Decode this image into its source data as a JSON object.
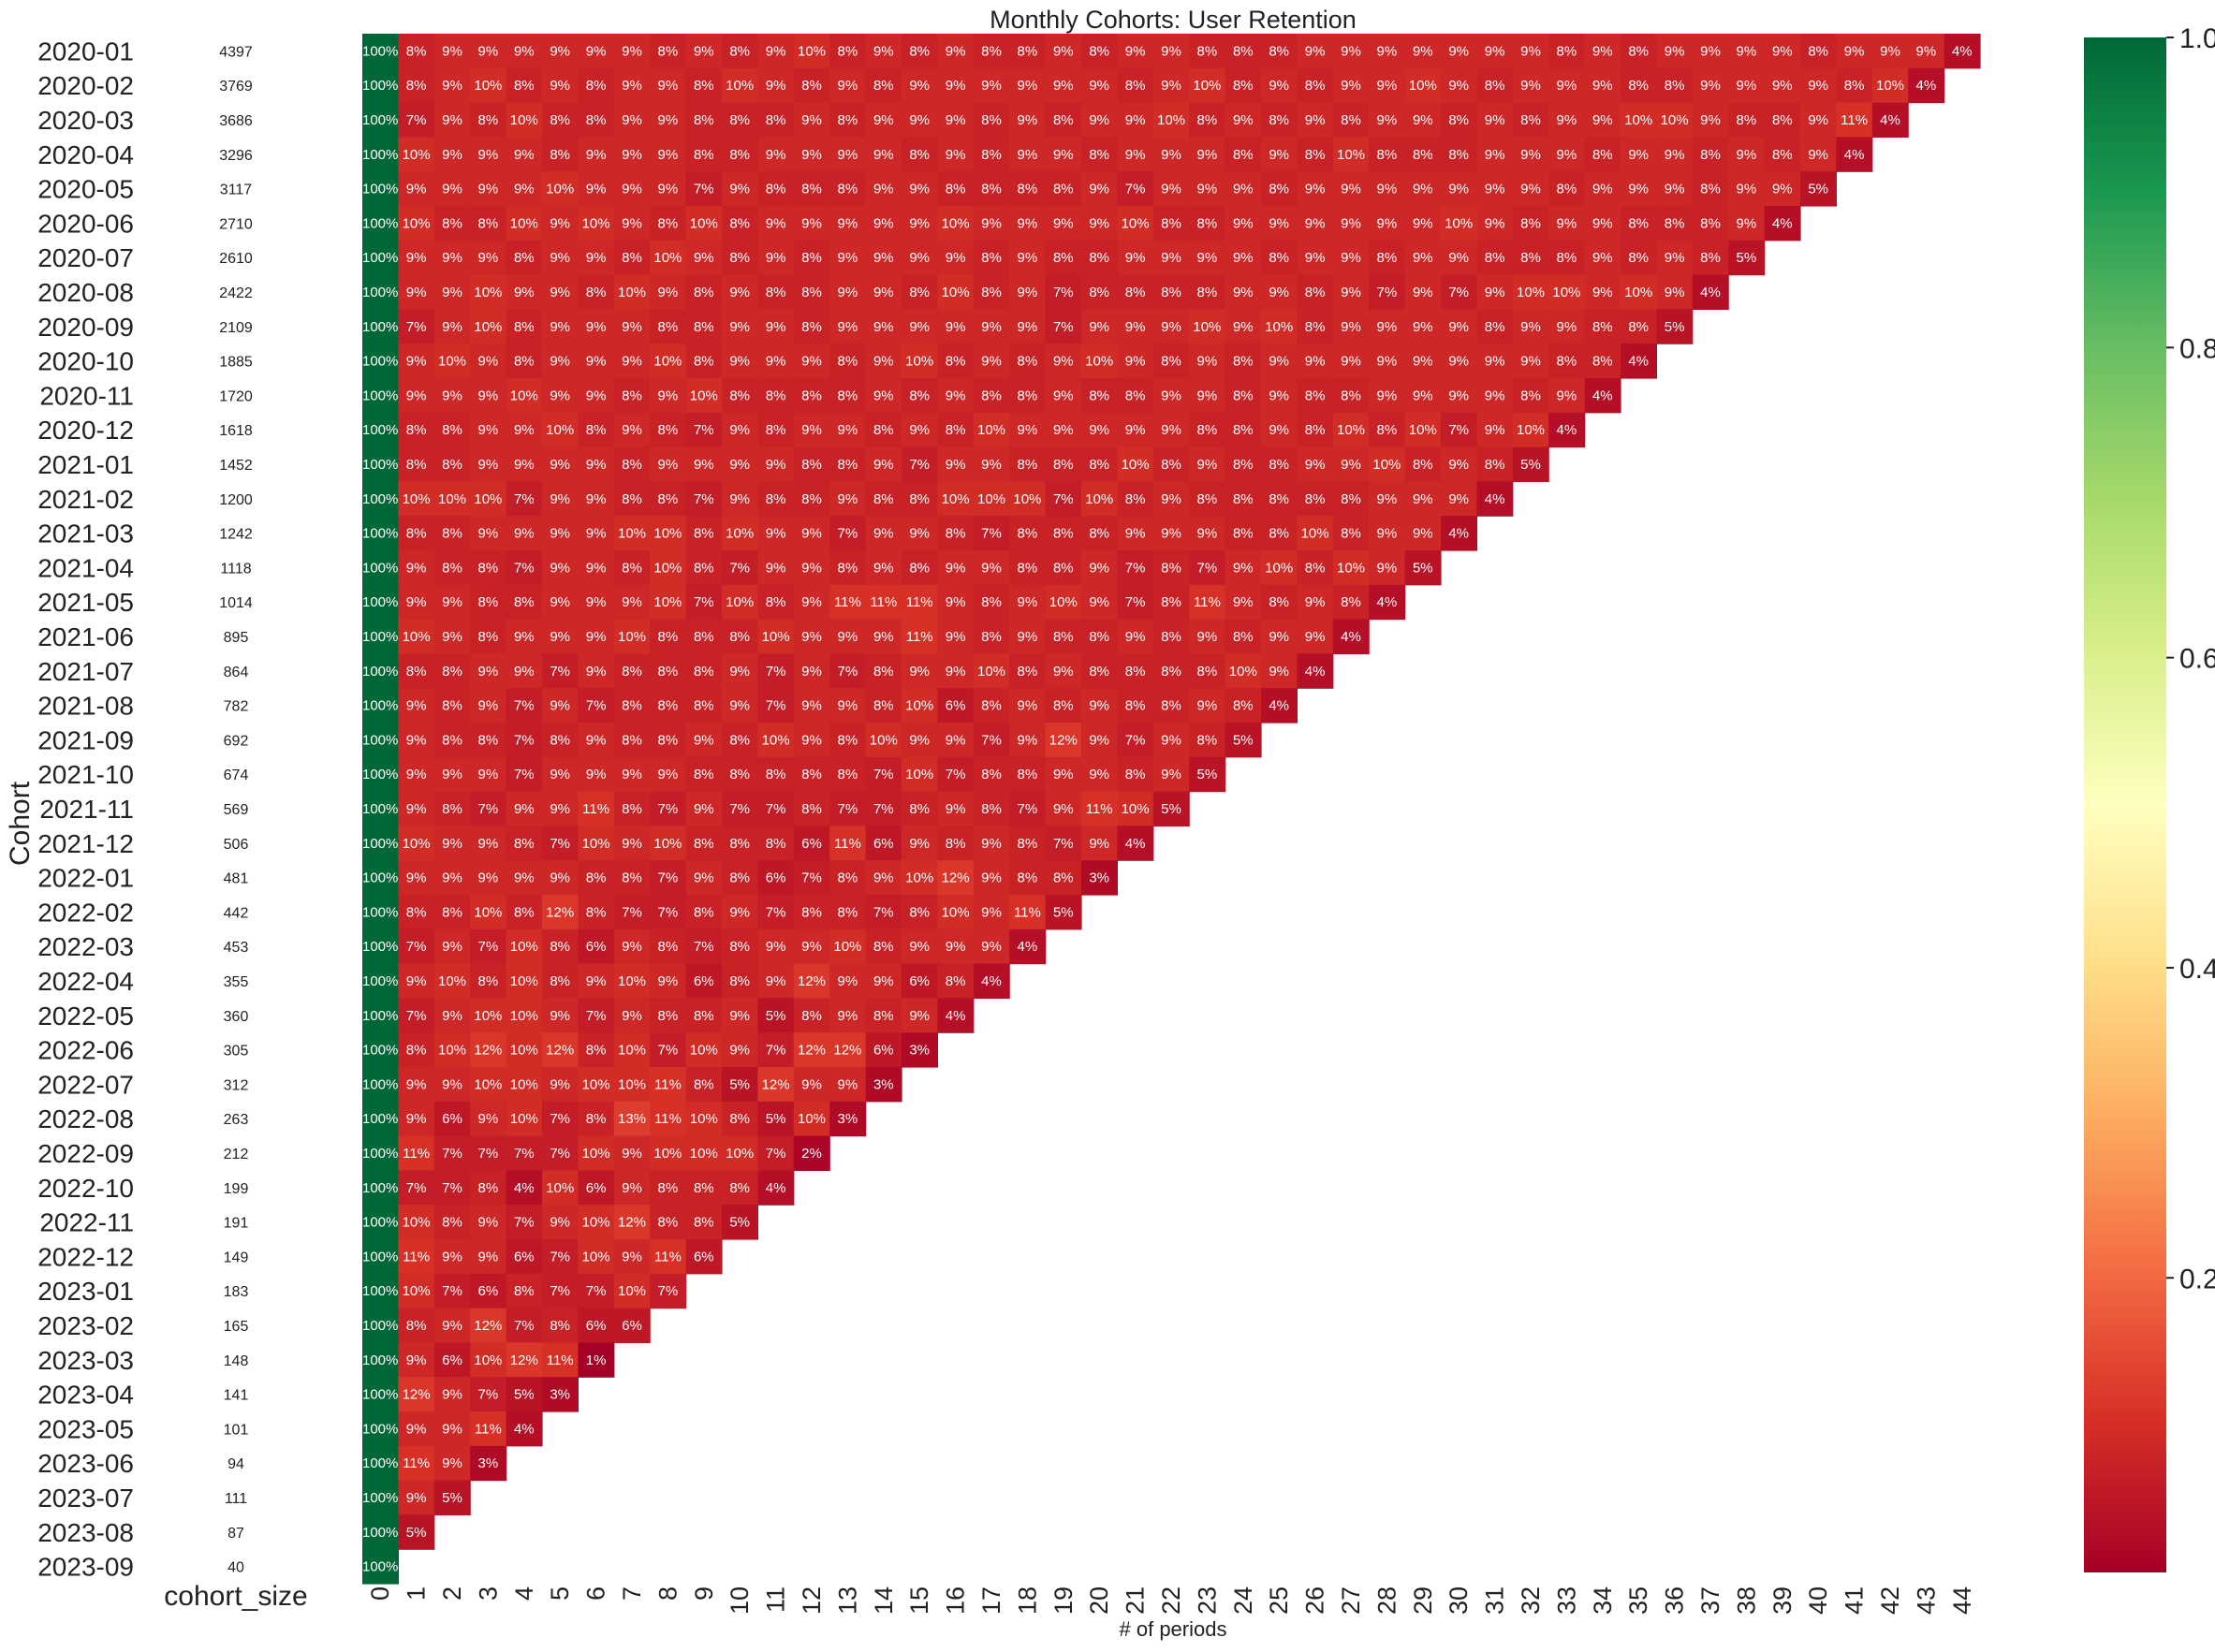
{
  "chart_data": [
    {
      "type": "heatmap",
      "title": "Monthly Cohorts: User Retention",
      "xlabel": "# of periods",
      "ylabel": "Cohort",
      "colormap": "RdYlGn",
      "colorbar": {
        "ticks": [
          "0.2",
          "0.4",
          "0.6",
          "0.8",
          "1.0"
        ],
        "min": 0.01,
        "max": 1.0
      },
      "x_ticks": [
        "0",
        "1",
        "2",
        "3",
        "4",
        "5",
        "6",
        "7",
        "8",
        "9",
        "10",
        "11",
        "12",
        "13",
        "14",
        "15",
        "16",
        "17",
        "18",
        "19",
        "20",
        "21",
        "22",
        "23",
        "24",
        "25",
        "26",
        "27",
        "28",
        "29",
        "30",
        "31",
        "32",
        "33",
        "34",
        "35",
        "36",
        "37",
        "38",
        "39",
        "40",
        "41",
        "42",
        "43",
        "44"
      ],
      "cohorts": [
        "2020-01",
        "2020-02",
        "2020-03",
        "2020-04",
        "2020-05",
        "2020-06",
        "2020-07",
        "2020-08",
        "2020-09",
        "2020-10",
        "2020-11",
        "2020-12",
        "2021-01",
        "2021-02",
        "2021-03",
        "2021-04",
        "2021-05",
        "2021-06",
        "2021-07",
        "2021-08",
        "2021-09",
        "2021-10",
        "2021-11",
        "2021-12",
        "2022-01",
        "2022-02",
        "2022-03",
        "2022-04",
        "2022-05",
        "2022-06",
        "2022-07",
        "2022-08",
        "2022-09",
        "2022-10",
        "2022-11",
        "2022-12",
        "2023-01",
        "2023-02",
        "2023-03",
        "2023-04",
        "2023-05",
        "2023-06",
        "2023-07",
        "2023-08",
        "2023-09"
      ],
      "values": [
        [
          100,
          8,
          9,
          9,
          9,
          9,
          9,
          9,
          8,
          9,
          8,
          9,
          10,
          8,
          9,
          8,
          9,
          8,
          8,
          9,
          8,
          9,
          9,
          8,
          8,
          8,
          9,
          9,
          9,
          9,
          9,
          9,
          9,
          8,
          9,
          8,
          9,
          9,
          9,
          9,
          8,
          9,
          9,
          9,
          4
        ],
        [
          100,
          8,
          9,
          10,
          8,
          9,
          8,
          9,
          9,
          8,
          10,
          9,
          8,
          9,
          8,
          9,
          9,
          9,
          9,
          9,
          9,
          8,
          9,
          10,
          8,
          9,
          8,
          9,
          9,
          10,
          9,
          8,
          9,
          9,
          9,
          8,
          8,
          9,
          9,
          9,
          9,
          8,
          10,
          4
        ],
        [
          100,
          7,
          9,
          8,
          10,
          8,
          8,
          9,
          9,
          8,
          8,
          8,
          9,
          8,
          9,
          9,
          9,
          8,
          9,
          8,
          9,
          9,
          10,
          8,
          9,
          8,
          9,
          8,
          9,
          9,
          8,
          9,
          8,
          9,
          9,
          10,
          10,
          9,
          8,
          8,
          9,
          11,
          4
        ],
        [
          100,
          10,
          9,
          9,
          9,
          8,
          9,
          9,
          9,
          8,
          8,
          9,
          9,
          9,
          9,
          8,
          9,
          8,
          9,
          9,
          8,
          9,
          9,
          9,
          8,
          9,
          8,
          10,
          8,
          8,
          8,
          9,
          9,
          9,
          8,
          9,
          9,
          8,
          9,
          8,
          9,
          4
        ],
        [
          100,
          9,
          9,
          9,
          9,
          10,
          9,
          9,
          9,
          7,
          9,
          8,
          8,
          8,
          9,
          9,
          8,
          8,
          8,
          8,
          9,
          7,
          9,
          9,
          9,
          8,
          9,
          9,
          9,
          9,
          9,
          9,
          9,
          8,
          9,
          9,
          9,
          8,
          9,
          9,
          5
        ],
        [
          100,
          10,
          8,
          8,
          10,
          9,
          10,
          9,
          8,
          10,
          8,
          9,
          9,
          9,
          9,
          9,
          10,
          9,
          9,
          9,
          9,
          10,
          8,
          8,
          9,
          9,
          9,
          9,
          9,
          9,
          10,
          9,
          8,
          9,
          9,
          8,
          8,
          8,
          9,
          4
        ],
        [
          100,
          9,
          9,
          9,
          8,
          9,
          9,
          8,
          10,
          9,
          8,
          9,
          8,
          9,
          9,
          9,
          9,
          8,
          9,
          8,
          8,
          9,
          9,
          9,
          9,
          8,
          9,
          9,
          8,
          9,
          9,
          8,
          8,
          8,
          9,
          8,
          9,
          8,
          5
        ],
        [
          100,
          9,
          9,
          10,
          9,
          9,
          8,
          10,
          9,
          8,
          9,
          8,
          8,
          9,
          9,
          8,
          10,
          8,
          9,
          7,
          8,
          8,
          8,
          8,
          9,
          9,
          8,
          9,
          7,
          9,
          7,
          9,
          10,
          10,
          9,
          10,
          9,
          4
        ],
        [
          100,
          7,
          9,
          10,
          8,
          9,
          9,
          9,
          8,
          8,
          9,
          9,
          8,
          9,
          9,
          9,
          9,
          9,
          9,
          7,
          9,
          9,
          9,
          10,
          9,
          10,
          8,
          9,
          9,
          9,
          9,
          8,
          9,
          9,
          8,
          8,
          5
        ],
        [
          100,
          9,
          10,
          9,
          8,
          9,
          9,
          9,
          10,
          8,
          9,
          9,
          9,
          8,
          9,
          10,
          8,
          9,
          8,
          9,
          10,
          9,
          8,
          9,
          8,
          9,
          9,
          9,
          9,
          9,
          9,
          9,
          9,
          8,
          8,
          4
        ],
        [
          100,
          9,
          9,
          9,
          10,
          9,
          9,
          8,
          9,
          10,
          8,
          8,
          8,
          8,
          9,
          8,
          9,
          8,
          8,
          9,
          8,
          8,
          9,
          9,
          8,
          9,
          8,
          8,
          9,
          9,
          9,
          9,
          8,
          9,
          4
        ],
        [
          100,
          8,
          8,
          9,
          9,
          10,
          8,
          9,
          8,
          7,
          9,
          8,
          9,
          9,
          8,
          9,
          8,
          10,
          9,
          9,
          9,
          9,
          9,
          8,
          8,
          9,
          8,
          10,
          8,
          10,
          7,
          9,
          10,
          4
        ],
        [
          100,
          8,
          8,
          9,
          9,
          9,
          9,
          8,
          9,
          9,
          9,
          9,
          8,
          8,
          9,
          7,
          9,
          9,
          8,
          8,
          8,
          10,
          8,
          9,
          8,
          8,
          9,
          9,
          10,
          8,
          9,
          8,
          5
        ],
        [
          100,
          10,
          10,
          10,
          7,
          9,
          9,
          8,
          8,
          7,
          9,
          8,
          8,
          9,
          8,
          8,
          10,
          10,
          10,
          7,
          10,
          8,
          9,
          8,
          8,
          8,
          8,
          8,
          9,
          9,
          9,
          4
        ],
        [
          100,
          8,
          8,
          9,
          9,
          9,
          9,
          10,
          10,
          8,
          10,
          9,
          9,
          7,
          9,
          9,
          8,
          7,
          8,
          8,
          8,
          9,
          9,
          9,
          8,
          8,
          10,
          8,
          9,
          9,
          4
        ],
        [
          100,
          9,
          8,
          8,
          7,
          9,
          9,
          8,
          10,
          8,
          7,
          9,
          9,
          8,
          9,
          8,
          9,
          9,
          8,
          8,
          9,
          7,
          8,
          7,
          9,
          10,
          8,
          10,
          9,
          5
        ],
        [
          100,
          9,
          9,
          8,
          8,
          9,
          9,
          9,
          10,
          7,
          10,
          8,
          9,
          11,
          11,
          11,
          9,
          8,
          9,
          10,
          9,
          7,
          8,
          11,
          9,
          8,
          9,
          8,
          4
        ],
        [
          100,
          10,
          9,
          8,
          9,
          9,
          9,
          10,
          8,
          8,
          8,
          10,
          9,
          9,
          9,
          11,
          9,
          8,
          9,
          8,
          8,
          9,
          8,
          9,
          8,
          9,
          9,
          4
        ],
        [
          100,
          8,
          8,
          9,
          9,
          7,
          9,
          8,
          8,
          8,
          9,
          7,
          9,
          7,
          8,
          9,
          9,
          10,
          8,
          9,
          8,
          8,
          8,
          8,
          10,
          9,
          4
        ],
        [
          100,
          9,
          8,
          9,
          7,
          9,
          7,
          8,
          8,
          8,
          9,
          7,
          9,
          9,
          8,
          10,
          6,
          8,
          9,
          8,
          9,
          8,
          8,
          9,
          8,
          4
        ],
        [
          100,
          9,
          8,
          8,
          7,
          8,
          9,
          8,
          8,
          9,
          8,
          10,
          9,
          8,
          10,
          9,
          9,
          7,
          9,
          12,
          9,
          7,
          9,
          8,
          5
        ],
        [
          100,
          9,
          9,
          9,
          7,
          9,
          9,
          9,
          9,
          8,
          8,
          8,
          8,
          8,
          7,
          10,
          7,
          8,
          8,
          9,
          9,
          8,
          9,
          5
        ],
        [
          100,
          9,
          8,
          7,
          9,
          9,
          11,
          8,
          7,
          9,
          7,
          7,
          8,
          7,
          7,
          8,
          9,
          8,
          7,
          9,
          11,
          10,
          5
        ],
        [
          100,
          10,
          9,
          9,
          8,
          7,
          10,
          9,
          10,
          8,
          8,
          8,
          6,
          11,
          6,
          9,
          8,
          9,
          8,
          7,
          9,
          4
        ],
        [
          100,
          9,
          9,
          9,
          9,
          9,
          8,
          8,
          7,
          9,
          8,
          6,
          7,
          8,
          9,
          10,
          12,
          9,
          8,
          8,
          3
        ],
        [
          100,
          8,
          8,
          10,
          8,
          12,
          8,
          7,
          7,
          8,
          9,
          7,
          8,
          8,
          7,
          8,
          10,
          9,
          11,
          5
        ],
        [
          100,
          7,
          9,
          7,
          10,
          8,
          6,
          9,
          8,
          7,
          8,
          9,
          9,
          10,
          8,
          9,
          9,
          9,
          4
        ],
        [
          100,
          9,
          10,
          8,
          10,
          8,
          9,
          10,
          9,
          6,
          8,
          9,
          12,
          9,
          9,
          6,
          8,
          4
        ],
        [
          100,
          7,
          9,
          10,
          10,
          9,
          7,
          9,
          8,
          8,
          9,
          5,
          8,
          9,
          8,
          9,
          4
        ],
        [
          100,
          8,
          10,
          12,
          10,
          12,
          8,
          10,
          7,
          10,
          9,
          7,
          12,
          12,
          6,
          3
        ],
        [
          100,
          9,
          9,
          10,
          10,
          9,
          10,
          10,
          11,
          8,
          5,
          12,
          9,
          9,
          3
        ],
        [
          100,
          9,
          6,
          9,
          10,
          7,
          8,
          13,
          11,
          10,
          8,
          5,
          10,
          3
        ],
        [
          100,
          11,
          7,
          7,
          7,
          7,
          10,
          9,
          10,
          10,
          10,
          7,
          2
        ],
        [
          100,
          7,
          7,
          8,
          4,
          10,
          6,
          9,
          8,
          8,
          8,
          4
        ],
        [
          100,
          10,
          8,
          9,
          7,
          9,
          10,
          12,
          8,
          8,
          5
        ],
        [
          100,
          11,
          9,
          9,
          6,
          7,
          10,
          9,
          11,
          6
        ],
        [
          100,
          10,
          7,
          6,
          8,
          7,
          7,
          10,
          7
        ],
        [
          100,
          8,
          9,
          12,
          7,
          8,
          6,
          6
        ],
        [
          100,
          9,
          6,
          10,
          12,
          11,
          1
        ],
        [
          100,
          12,
          9,
          7,
          5,
          3
        ],
        [
          100,
          9,
          9,
          11,
          4
        ],
        [
          100,
          11,
          9,
          3
        ],
        [
          100,
          9,
          5
        ],
        [
          100,
          5
        ],
        [
          100
        ]
      ]
    },
    {
      "type": "table",
      "xlabel": "cohort_size",
      "values": [
        4397,
        3769,
        3686,
        3296,
        3117,
        2710,
        2610,
        2422,
        2109,
        1885,
        1720,
        1618,
        1452,
        1200,
        1242,
        1118,
        1014,
        895,
        864,
        782,
        692,
        674,
        569,
        506,
        481,
        442,
        453,
        355,
        360,
        305,
        312,
        263,
        212,
        199,
        191,
        149,
        183,
        165,
        148,
        141,
        101,
        94,
        111,
        87,
        40
      ]
    }
  ]
}
